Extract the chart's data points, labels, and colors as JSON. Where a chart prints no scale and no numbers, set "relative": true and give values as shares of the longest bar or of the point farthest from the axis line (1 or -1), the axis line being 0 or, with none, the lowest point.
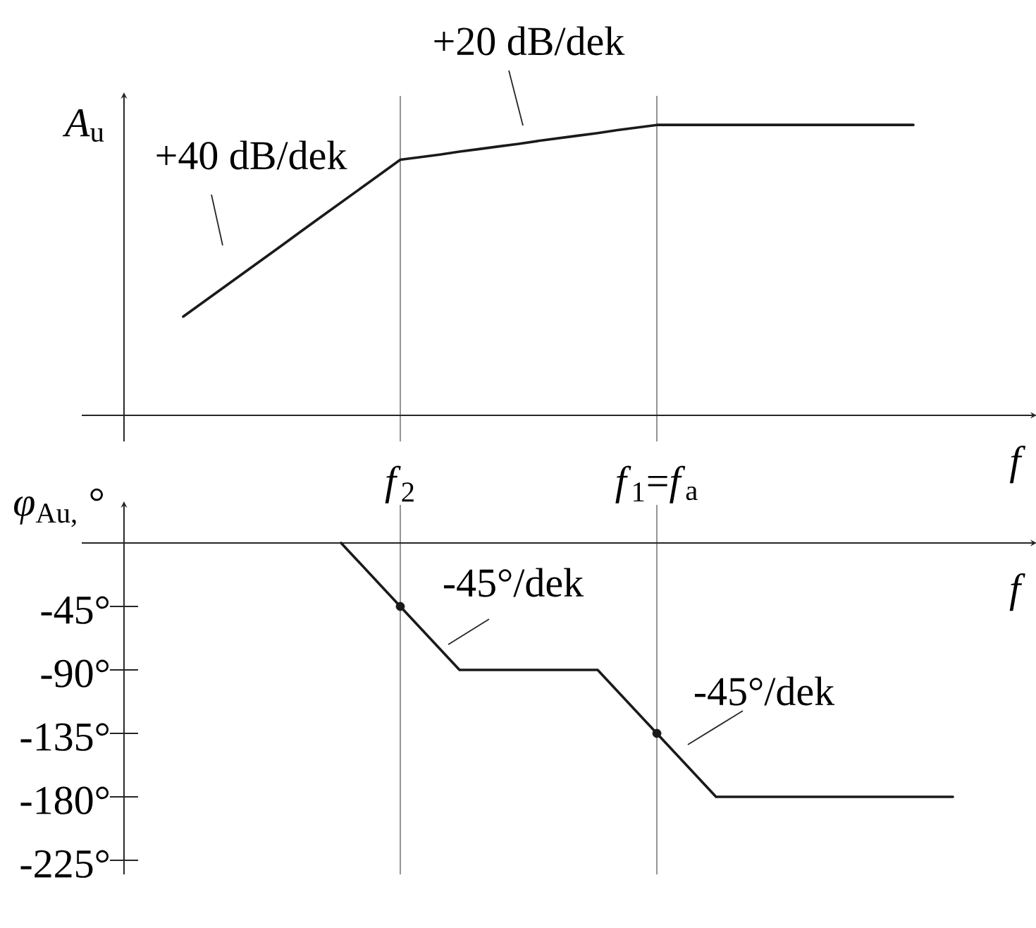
{
  "chart_data": [
    {
      "type": "line",
      "ylabel": "*A*$_{u}$",
      "xlabel": "f",
      "relative": true,
      "categories": [
        null,
        null,
        null,
        null,
        null,
        null,
        null,
        null,
        null,
        null,
        null,
        "*f*$_{2}$",
        null,
        null,
        null,
        null,
        null,
        null,
        null,
        null,
        null,
        null,
        null,
        null,
        "*f*$_{1}$=*f*$_{a}$",
        null,
        null,
        null,
        null,
        null,
        null,
        null,
        null,
        null,
        null,
        null,
        null,
        null,
        null,
        null
      ],
      "values": [
        0.34,
        0.389,
        0.438,
        0.487,
        0.536,
        0.585,
        0.635,
        0.684,
        0.733,
        0.782,
        0.831,
        0.88,
        0.889,
        0.898,
        0.908,
        0.917,
        0.926,
        0.935,
        0.945,
        0.954,
        0.963,
        0.972,
        0.982,
        0.991,
        1,
        1,
        1,
        1,
        1,
        1,
        1,
        1,
        1,
        1,
        1,
        1,
        1,
        1,
        null,
        null
      ],
      "color": "#1a1a1a",
      "grid": "x",
      "annotations": [
        "+40 dB/dek",
        "+20 dB/dek"
      ]
    },
    {
      "type": "line",
      "ylabel": "*φ*$_{Au,}$ °",
      "xlabel": "f",
      "categories": [
        null,
        null,
        null,
        null,
        null,
        null,
        null,
        null,
        null,
        null,
        null,
        null,
        null,
        null,
        null,
        null,
        null,
        null,
        null,
        null,
        null,
        null,
        null,
        null,
        null,
        null,
        null,
        null,
        null,
        null,
        null,
        null,
        null,
        null,
        null,
        null,
        null,
        null,
        null,
        null
      ],
      "ylim": [
        -235,
        27
      ],
      "yticks": [
        {
          "value": -45,
          "label": "-45°"
        },
        {
          "value": -90,
          "label": "-90°"
        },
        {
          "value": -135,
          "label": "-135°"
        },
        {
          "value": -180,
          "label": "-180°"
        },
        {
          "value": -225,
          "label": "-225°"
        }
      ],
      "tick_labels": "y",
      "series": [
        {
          "color": "#1a1a1a",
          "values": [
            null,
            null,
            null,
            null,
            null,
            null,
            null,
            null,
            0,
            -15,
            -30,
            -45,
            -60,
            -75,
            -90,
            -90,
            -90,
            -90,
            -90,
            -90,
            -90,
            -90,
            -105,
            -120,
            -135,
            -150,
            -165,
            -180,
            -180,
            -180,
            -180,
            -180,
            -180,
            -180,
            -180,
            -180,
            -180,
            -180,
            -180,
            -180
          ]
        },
        {
          "type": "scatter",
          "marker": "circle",
          "color": "#1a1a1a",
          "values": [
            null,
            null,
            null,
            null,
            null,
            null,
            null,
            null,
            null,
            null,
            null,
            -45,
            null,
            null,
            null,
            null,
            null,
            null,
            null,
            null,
            null,
            null,
            null,
            null,
            -135,
            null,
            null,
            null,
            null,
            null,
            null,
            null,
            null,
            null,
            null,
            null,
            null,
            null,
            null,
            null
          ]
        }
      ],
      "annotations": [
        "-45°/dek",
        "-45°/dek"
      ]
    }
  ]
}
